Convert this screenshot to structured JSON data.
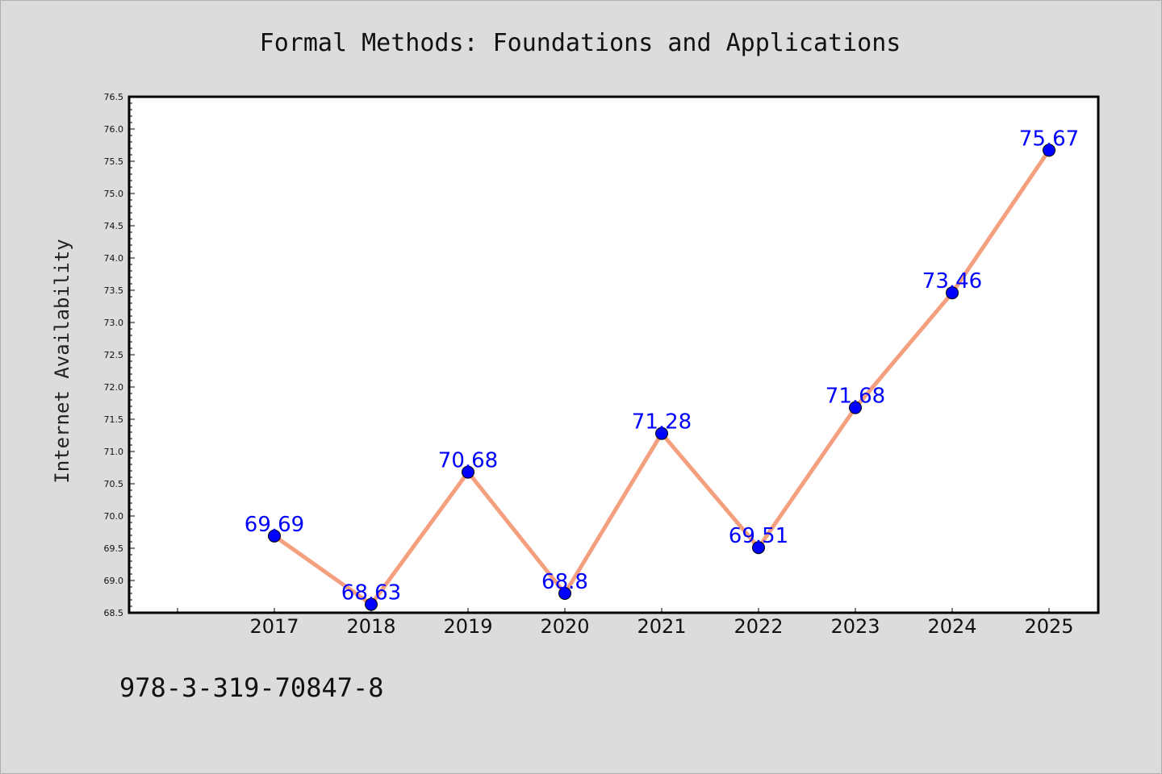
{
  "chart_data": {
    "type": "line",
    "title": "Formal Methods: Foundations and Applications",
    "xlabel": "",
    "ylabel": "Internet Availability",
    "categories": [
      "2017",
      "2018",
      "2019",
      "2020",
      "2021",
      "2022",
      "2023",
      "2024",
      "2025"
    ],
    "series": [
      {
        "values": [
          69.69,
          68.63,
          70.68,
          68.8,
          71.28,
          69.51,
          71.68,
          73.46,
          75.67
        ],
        "data_labels": [
          "69.69",
          "68.63",
          "70.68",
          "68.8",
          "71.28",
          "69.51",
          "71.68",
          "73.46",
          "75.67"
        ]
      }
    ],
    "ylim": [
      68.5,
      76.5
    ],
    "yticks": [
      "68.5",
      "69.0",
      "69.5",
      "70.0",
      "70.5",
      "71.0",
      "71.5",
      "72.0",
      "72.5",
      "73.0",
      "73.5",
      "74.0",
      "74.5",
      "75.0",
      "75.5",
      "76.0",
      "76.5"
    ],
    "grid": false,
    "line_color": "#f4a07e",
    "marker_color": "#0000ff",
    "label_color": "#0000ff",
    "annotation": "978-3-319-70847-8"
  }
}
